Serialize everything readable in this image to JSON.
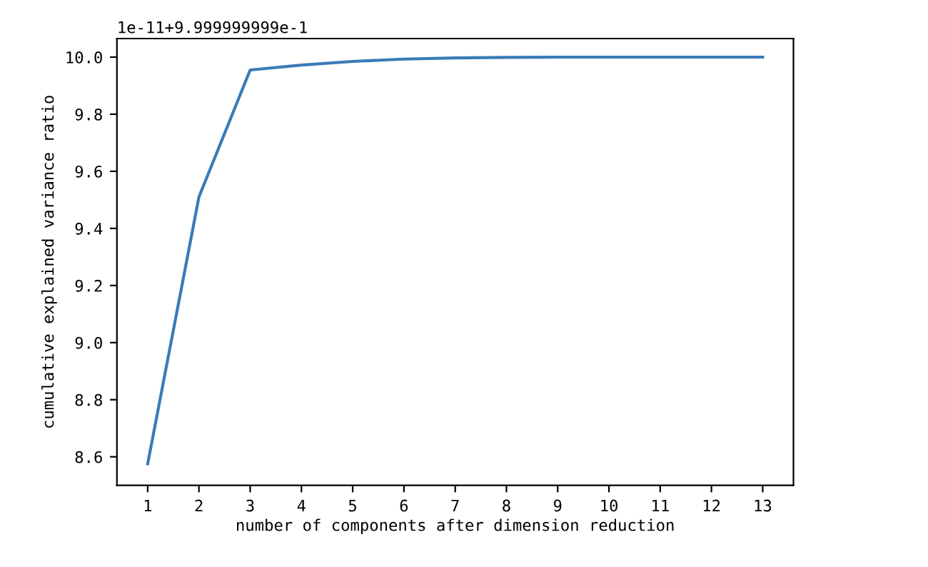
{
  "chart_data": {
    "type": "line",
    "xlabel": "number of components after dimension reduction",
    "ylabel": "cumulative explained variance ratio",
    "annotations": [
      "1e-11+9.999999999e-1"
    ],
    "x": [
      1,
      2,
      3,
      4,
      5,
      6,
      7,
      8,
      9,
      10,
      11,
      12,
      13
    ],
    "series": [
      {
        "color": "#3a7bb8",
        "values": [
          8.575,
          9.51,
          9.955,
          9.972,
          9.985,
          9.993,
          9.997,
          9.999,
          10.0,
          10.0,
          10.0,
          10.0,
          10.0
        ]
      }
    ],
    "xlim": [
      0.4,
      13.6
    ],
    "xticks": [
      1,
      2,
      3,
      4,
      5,
      6,
      7,
      8,
      9,
      10,
      11,
      12,
      13
    ],
    "ylim": [
      8.5,
      10.065
    ],
    "yticks": [
      8.6,
      8.8,
      {
        "value": 9.0,
        "label": "9.0"
      },
      9.2,
      9.4,
      9.6,
      9.8,
      {
        "value": 10.0,
        "label": "10.0"
      }
    ],
    "grid": false,
    "legend": false,
    "marker": "none",
    "line_style": "solid"
  }
}
